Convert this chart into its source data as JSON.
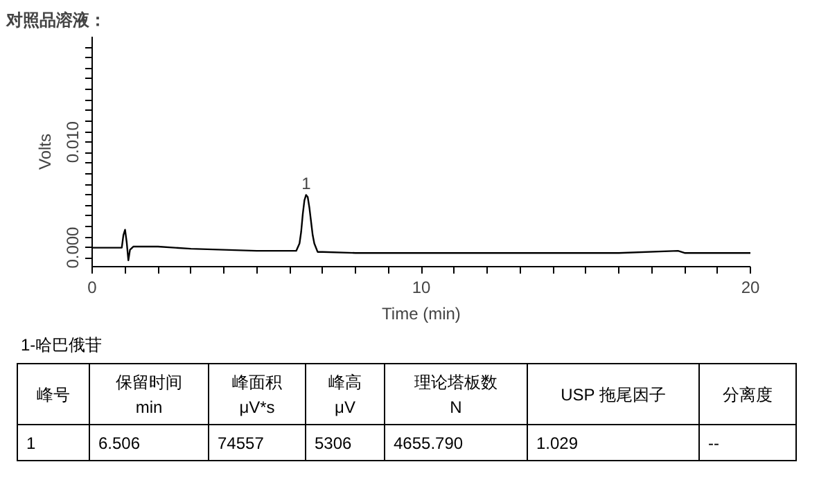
{
  "chart_data": {
    "type": "line",
    "title": "对照品溶液：",
    "xlabel": "Time (min)",
    "ylabel": "Volts",
    "x": [
      0,
      0.9,
      0.95,
      1.0,
      1.05,
      1.1,
      1.15,
      1.25,
      2,
      3,
      4,
      5,
      6,
      6.2,
      6.3,
      6.35,
      6.4,
      6.45,
      6.5,
      6.55,
      6.6,
      6.65,
      6.7,
      6.75,
      6.85,
      7,
      8,
      10,
      12,
      14,
      16,
      17.8,
      18,
      20
    ],
    "series": [
      {
        "color": "#000000",
        "values": [
          0,
          0,
          0.0012,
          0.0017,
          0.0005,
          -0.0012,
          -0.0002,
          0.0001,
          0.0001,
          -0.0001,
          -0.0002,
          -0.0003,
          -0.0003,
          -0.0003,
          0.0004,
          0.0015,
          0.0032,
          0.0045,
          0.005,
          0.0048,
          0.0038,
          0.0025,
          0.0012,
          0.0004,
          -0.0004,
          -0.0004,
          -0.0005,
          -0.0005,
          -0.0005,
          -0.0005,
          -0.0005,
          -0.0003,
          -0.0005,
          -0.0005
        ]
      }
    ],
    "xlim": [
      0,
      20
    ],
    "ylim": [
      -0.0018,
      0.02
    ],
    "xticks": [
      0,
      {
        "value": 1,
        "label": null
      },
      {
        "value": 2,
        "label": null
      },
      {
        "value": 3,
        "label": null
      },
      {
        "value": 4,
        "label": null
      },
      {
        "value": 5,
        "label": null
      },
      {
        "value": 6,
        "label": null
      },
      {
        "value": 7,
        "label": null
      },
      {
        "value": 8,
        "label": null
      },
      {
        "value": 9,
        "label": null
      },
      10,
      {
        "value": 11,
        "label": null
      },
      {
        "value": 12,
        "label": null
      },
      {
        "value": 13,
        "label": null
      },
      {
        "value": 14,
        "label": null
      },
      {
        "value": 15,
        "label": null
      },
      {
        "value": 16,
        "label": null
      },
      {
        "value": 17,
        "label": null
      },
      {
        "value": 18,
        "label": null
      },
      {
        "value": 19,
        "label": null
      },
      20
    ],
    "yticks": [
      {
        "value": -0.001,
        "label": null
      },
      {
        "value": 0,
        "label": "0.000"
      },
      {
        "value": 0.001,
        "label": null
      },
      {
        "value": 0.002,
        "label": null
      },
      {
        "value": 0.003,
        "label": null
      },
      {
        "value": 0.004,
        "label": null
      },
      {
        "value": 0.005,
        "label": null
      },
      {
        "value": 0.006,
        "label": null
      },
      {
        "value": 0.007,
        "label": null
      },
      {
        "value": 0.008,
        "label": null
      },
      {
        "value": 0.009,
        "label": null
      },
      {
        "value": 0.01,
        "label": "0.010"
      },
      {
        "value": 0.011,
        "label": null
      },
      {
        "value": 0.012,
        "label": null
      },
      {
        "value": 0.013,
        "label": null
      },
      {
        "value": 0.014,
        "label": null
      },
      {
        "value": 0.015,
        "label": null
      },
      {
        "value": 0.016,
        "label": null
      },
      {
        "value": 0.017,
        "label": null
      },
      {
        "value": 0.018,
        "label": null
      },
      {
        "value": 0.019,
        "label": null
      }
    ],
    "grid": false,
    "marker": "none",
    "line_style": "solid",
    "annotations": [
      {
        "text": "1",
        "x": 6.506,
        "y": 0.005
      },
      "1-哈巴俄苷",
      "峰号",
      "保留时间\nmin",
      "峰面积\nμV*s",
      "峰高\nμV",
      "理论塔板数\nN",
      "USP 拖尾因子",
      "分离度",
      "1",
      "6.506",
      "74557",
      "5306",
      "4655.790",
      "1.029",
      "--"
    ]
  }
}
